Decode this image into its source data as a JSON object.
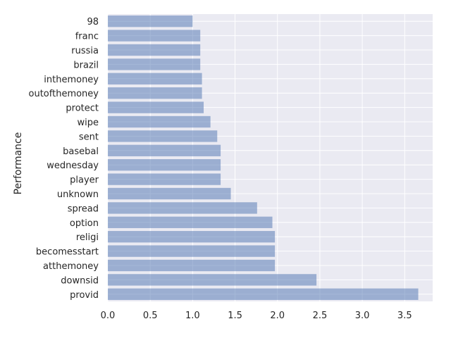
{
  "chart_data": {
    "type": "bar",
    "orientation": "horizontal",
    "title": "",
    "xlabel": "",
    "ylabel": "Performance",
    "categories": [
      "98",
      "franc",
      "russia",
      "brazil",
      "inthemoney",
      "outofthemoney",
      "protect",
      "wipe",
      "sent",
      "basebal",
      "wednesday",
      "player",
      "unknown",
      "spread",
      "option",
      "religi",
      "becomesstart",
      "atthemoney",
      "downsid",
      "provid"
    ],
    "values": [
      1.0,
      1.09,
      1.09,
      1.09,
      1.11,
      1.11,
      1.13,
      1.21,
      1.29,
      1.33,
      1.33,
      1.33,
      1.45,
      1.76,
      1.94,
      1.97,
      1.97,
      1.97,
      2.46,
      3.66
    ],
    "xlim": [
      0,
      3.83
    ],
    "xticks": [
      "0.0",
      "0.5",
      "1.0",
      "1.5",
      "2.0",
      "2.5",
      "3.0",
      "3.5"
    ],
    "grid": true,
    "colors": {
      "bar": "#4c72b0",
      "background": "#eaeaf2",
      "grid": "#ffffff"
    }
  }
}
